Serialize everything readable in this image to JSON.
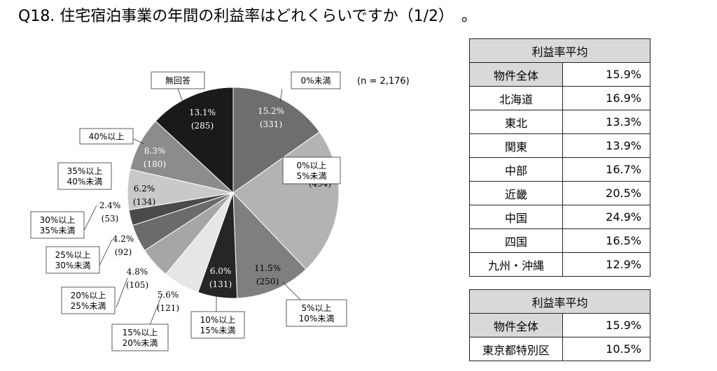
{
  "title": "Q18. 住宅宿泊事業の年間の利益率はどれくらいですか（1/2）　。",
  "chart_data": {
    "type": "pie",
    "n_label": "(n = 2,176)",
    "slices": [
      {
        "label": "0%未満",
        "pct_label": "15.2%",
        "count_label": "(331)",
        "value": 15.2,
        "count": 331,
        "color": "#6e6e6e"
      },
      {
        "label": "0%以上\n5%未満",
        "pct_label": "22.7%",
        "count_label": "(494)",
        "value": 22.7,
        "count": 494,
        "color": "#b3b3b3"
      },
      {
        "label": "5%以上\n10%未満",
        "pct_label": "11.5%",
        "count_label": "(250)",
        "value": 11.5,
        "count": 250,
        "color": "#7f7f7f"
      },
      {
        "label": "10%以上\n15%未満",
        "pct_label": "6.0%",
        "count_label": "(131)",
        "value": 6.0,
        "count": 131,
        "color": "#262626"
      },
      {
        "label": "15%以上\n20%未満",
        "pct_label": "5.6%",
        "count_label": "(121)",
        "value": 5.6,
        "count": 121,
        "color": "#e6e6e6"
      },
      {
        "label": "20%以上\n25%未満",
        "pct_label": "4.8%",
        "count_label": "(105)",
        "value": 4.8,
        "count": 105,
        "color": "#a6a6a6"
      },
      {
        "label": "25%以上\n30%未満",
        "pct_label": "4.2%",
        "count_label": "(92)",
        "value": 4.2,
        "count": 92,
        "color": "#6b6b6b"
      },
      {
        "label": "30%以上\n35%未満",
        "pct_label": "2.4%",
        "count_label": "(53)",
        "value": 2.4,
        "count": 53,
        "color": "#4a4a4a"
      },
      {
        "label": "35%以上\n40%未満",
        "pct_label": "6.2%",
        "count_label": "(134)",
        "value": 6.2,
        "count": 134,
        "color": "#c9c9c9"
      },
      {
        "label": "40%以上",
        "pct_label": "8.3%",
        "count_label": "(180)",
        "value": 8.3,
        "count": 180,
        "color": "#8c8c8c"
      },
      {
        "label": "無回答",
        "pct_label": "13.1%",
        "count_label": "(285)",
        "value": 13.1,
        "count": 285,
        "color": "#1a1a1a"
      }
    ]
  },
  "table1": {
    "header": "利益率平均",
    "rows": [
      {
        "region": "物件全体",
        "value": "15.9%"
      },
      {
        "region": "北海道",
        "value": "16.9%"
      },
      {
        "region": "東北",
        "value": "13.3%"
      },
      {
        "region": "関東",
        "value": "13.9%"
      },
      {
        "region": "中部",
        "value": "16.7%"
      },
      {
        "region": "近畿",
        "value": "20.5%"
      },
      {
        "region": "中国",
        "value": "24.9%"
      },
      {
        "region": "四国",
        "value": "16.5%"
      },
      {
        "region": "九州・沖縄",
        "value": "12.9%"
      }
    ]
  },
  "table2": {
    "header": "利益率平均",
    "rows": [
      {
        "region": "物件全体",
        "value": "15.9%"
      },
      {
        "region": "東京都特別区",
        "value": "10.5%"
      }
    ]
  }
}
